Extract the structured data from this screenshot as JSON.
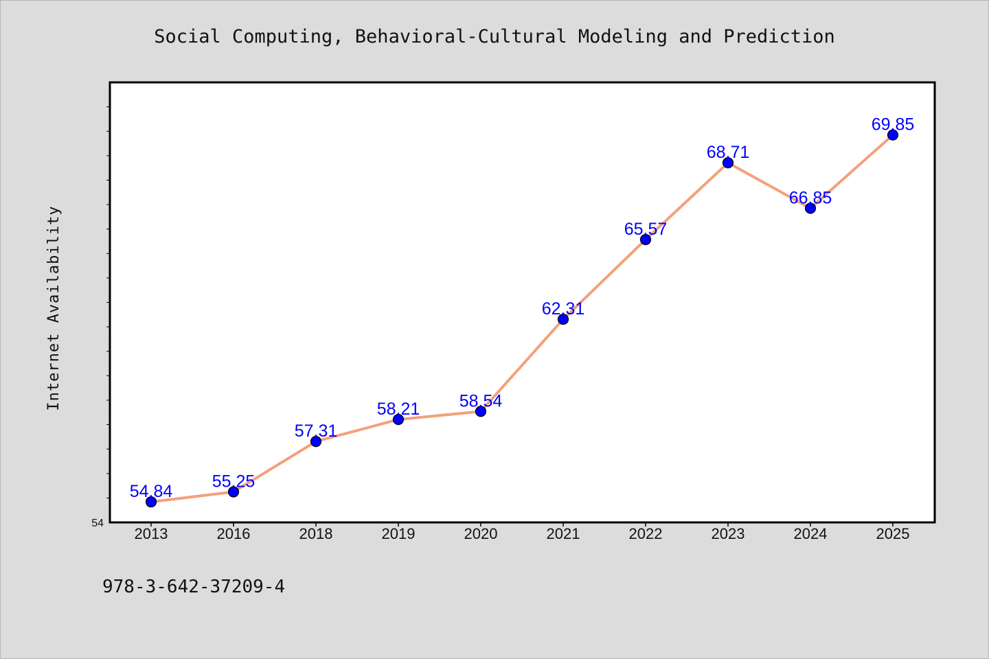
{
  "chart_data": {
    "type": "line",
    "title": "Social Computing, Behavioral-Cultural Modeling and Prediction",
    "xlabel": "",
    "ylabel": "Internet Availability",
    "categories": [
      "2013",
      "2016",
      "2018",
      "2019",
      "2020",
      "2021",
      "2022",
      "2023",
      "2024",
      "2025"
    ],
    "series": [
      {
        "values": [
          54.84,
          55.25,
          57.31,
          58.21,
          58.54,
          62.31,
          65.57,
          68.71,
          66.85,
          69.85
        ],
        "labels": [
          "54.84",
          "55.25",
          "57.31",
          "58.21",
          "58.54",
          "62.31",
          "65.57",
          "68.71",
          "66.85",
          "69.85"
        ]
      }
    ],
    "ylim": [
      54,
      72
    ],
    "y_tick_labels": [
      "54"
    ],
    "grid": false,
    "legend": "none",
    "colors": {
      "line": "#f4a07c",
      "marker": "#0000ff",
      "marker_edge": "#000000",
      "data_label": "#0000ff",
      "background": "#dcdcdc",
      "plot_background": "#ffffff"
    }
  },
  "footer": {
    "isbn": "978-3-642-37209-4"
  }
}
